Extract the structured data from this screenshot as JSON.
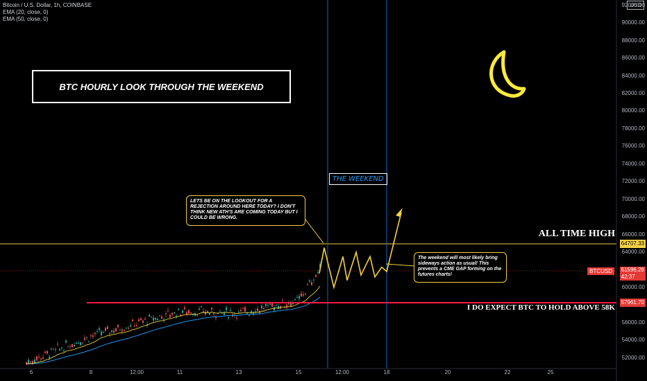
{
  "legend": {
    "symbol_line": "Bitcoin / U.S. Dollar, 1h, COINBASE",
    "ema20": "EMA (20, close, 0)",
    "ema50": "EMA (50, close, 0)"
  },
  "title_box": "BTC HOURLY LOOK THROUGH THE WEEKEND",
  "weekend_label": "THE WEEKEND",
  "callout_left": "LETS BE ON THE LOOKOUT FOR A REJECTION AROUND HERE TODAY? I DON'T THINK NEW ATH'S ARE COMING TODAY BUT I COULD BE WRONG.",
  "callout_right": "The weekend will most likely bring sideways action as usual! This prevents a CME GAP forming on the futures charts!",
  "ath_label": "ALL TIME HIGH",
  "hold_label": "I DO EXPECT BTC TO HOLD ABOVE 58K",
  "price_tags": {
    "ath": "64707.33",
    "symbol": "BTCUSD",
    "price": "61596.26",
    "countdown": "42:37",
    "support": "57961.70",
    "currency": "USD"
  },
  "colors": {
    "up": "#26a69a",
    "down": "#ef5350",
    "ath_line": "#f5d142",
    "support_line": "#ff1744",
    "ema20": "#ffeb3b",
    "ema50": "#2196f3",
    "annotation": "#f5d142",
    "weekend_lines": "#1565c0"
  },
  "icons": [
    "moon-icon"
  ],
  "chart_data": {
    "type": "line",
    "title": "Bitcoin / U.S. Dollar, 1h, COINBASE",
    "y_ticks": [
      "52000.00",
      "54000.00",
      "56000.00",
      "58000.00",
      "60000.00",
      "62000.00",
      "64000.00",
      "66000.00",
      "68000.00",
      "70000.00",
      "72000.00",
      "74000.00",
      "76000.00",
      "78000.00",
      "80000.00",
      "82000.00",
      "84000.00",
      "86000.00",
      "88000.00",
      "90000.00",
      "92000.00"
    ],
    "x_ticks": [
      "6",
      "8",
      "12:00",
      "11",
      "13",
      "15",
      "12:00",
      "18",
      "20",
      "22",
      "25"
    ],
    "ylim": [
      50800,
      92300
    ],
    "levels": {
      "all_time_high": 64707.33,
      "support": 57961.7,
      "last_price": 61596.26
    },
    "price_path_x": [
      "6",
      "8",
      "11",
      "13",
      "15",
      "16"
    ],
    "price_path_y": [
      51500,
      54500,
      57300,
      57100,
      58500,
      62200
    ],
    "projection_y": [
      61600,
      64500,
      60000,
      63500,
      60800,
      64000,
      61400,
      63500,
      61200,
      62300,
      61800,
      68500
    ],
    "grid": false
  }
}
